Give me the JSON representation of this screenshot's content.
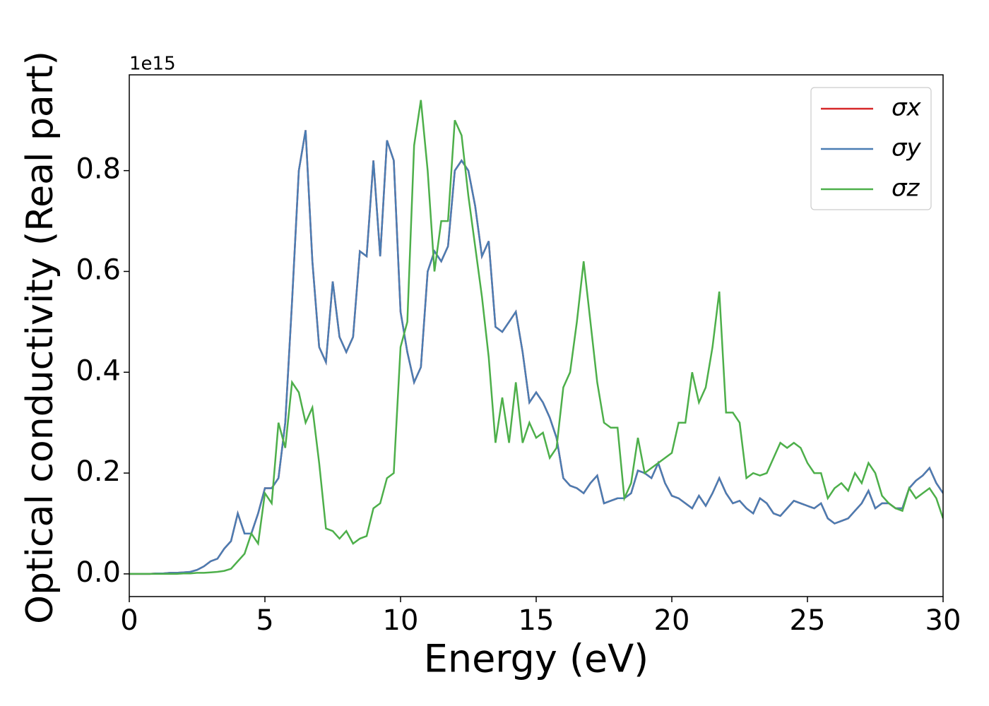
{
  "chart_data": {
    "type": "line",
    "x_label": "Energy (eV)",
    "y_label": "Optical conductivity (Real part)",
    "y_offset_label": "1e15",
    "x": [
      0,
      0.25,
      0.5,
      0.75,
      1,
      1.25,
      1.5,
      1.75,
      2,
      2.25,
      2.5,
      2.75,
      3,
      3.25,
      3.5,
      3.75,
      4,
      4.25,
      4.5,
      4.75,
      5,
      5.25,
      5.5,
      5.75,
      6,
      6.25,
      6.5,
      6.75,
      7,
      7.25,
      7.5,
      7.75,
      8,
      8.25,
      8.5,
      8.75,
      9,
      9.25,
      9.5,
      9.75,
      10,
      10.25,
      10.5,
      10.75,
      11,
      11.25,
      11.5,
      11.75,
      12,
      12.25,
      12.5,
      12.75,
      13,
      13.25,
      13.5,
      13.75,
      14,
      14.25,
      14.5,
      14.75,
      15,
      15.25,
      15.5,
      15.75,
      16,
      16.25,
      16.5,
      16.75,
      17,
      17.25,
      17.5,
      17.75,
      18,
      18.25,
      18.5,
      18.75,
      19,
      19.25,
      19.5,
      19.75,
      20,
      20.25,
      20.5,
      20.75,
      21,
      21.25,
      21.5,
      21.75,
      22,
      22.25,
      22.5,
      22.75,
      23,
      23.25,
      23.5,
      23.75,
      24,
      24.25,
      24.5,
      24.75,
      25,
      25.25,
      25.5,
      25.75,
      26,
      26.25,
      26.5,
      26.75,
      27,
      27.25,
      27.5,
      27.75,
      28,
      28.25,
      28.5,
      28.75,
      29,
      29.25,
      29.5,
      29.75,
      30
    ],
    "series": [
      {
        "name": "σx",
        "color": "#d62728",
        "values": [
          0,
          0,
          0,
          0,
          0.001,
          0.001,
          0.002,
          0.002,
          0.003,
          0.004,
          0.008,
          0.015,
          0.025,
          0.03,
          0.05,
          0.065,
          0.12,
          0.08,
          0.08,
          0.12,
          0.17,
          0.17,
          0.19,
          0.3,
          0.54,
          0.8,
          0.88,
          0.62,
          0.45,
          0.42,
          0.58,
          0.47,
          0.44,
          0.47,
          0.64,
          0.63,
          0.82,
          0.63,
          0.86,
          0.82,
          0.52,
          0.44,
          0.38,
          0.41,
          0.6,
          0.64,
          0.62,
          0.65,
          0.8,
          0.82,
          0.8,
          0.73,
          0.63,
          0.66,
          0.49,
          0.48,
          0.5,
          0.52,
          0.44,
          0.34,
          0.36,
          0.34,
          0.31,
          0.27,
          0.19,
          0.175,
          0.17,
          0.16,
          0.18,
          0.195,
          0.14,
          0.145,
          0.15,
          0.15,
          0.16,
          0.205,
          0.2,
          0.19,
          0.22,
          0.18,
          0.155,
          0.15,
          0.14,
          0.13,
          0.155,
          0.135,
          0.16,
          0.19,
          0.16,
          0.14,
          0.145,
          0.13,
          0.12,
          0.15,
          0.14,
          0.12,
          0.115,
          0.13,
          0.145,
          0.14,
          0.135,
          0.13,
          0.14,
          0.11,
          0.1,
          0.105,
          0.11,
          0.125,
          0.14,
          0.165,
          0.13,
          0.14,
          0.14,
          0.13,
          0.13,
          0.17,
          0.185,
          0.195,
          0.21,
          0.18,
          0.16
        ]
      },
      {
        "name": "σy",
        "color": "#4a7db3",
        "values": [
          0,
          0,
          0,
          0,
          0.001,
          0.001,
          0.002,
          0.002,
          0.003,
          0.004,
          0.008,
          0.015,
          0.025,
          0.03,
          0.05,
          0.065,
          0.12,
          0.08,
          0.08,
          0.12,
          0.17,
          0.17,
          0.19,
          0.3,
          0.54,
          0.8,
          0.88,
          0.62,
          0.45,
          0.42,
          0.58,
          0.47,
          0.44,
          0.47,
          0.64,
          0.63,
          0.82,
          0.63,
          0.86,
          0.82,
          0.52,
          0.44,
          0.38,
          0.41,
          0.6,
          0.64,
          0.62,
          0.65,
          0.8,
          0.82,
          0.8,
          0.73,
          0.63,
          0.66,
          0.49,
          0.48,
          0.5,
          0.52,
          0.44,
          0.34,
          0.36,
          0.34,
          0.31,
          0.27,
          0.19,
          0.175,
          0.17,
          0.16,
          0.18,
          0.195,
          0.14,
          0.145,
          0.15,
          0.15,
          0.16,
          0.205,
          0.2,
          0.19,
          0.22,
          0.18,
          0.155,
          0.15,
          0.14,
          0.13,
          0.155,
          0.135,
          0.16,
          0.19,
          0.16,
          0.14,
          0.145,
          0.13,
          0.12,
          0.15,
          0.14,
          0.12,
          0.115,
          0.13,
          0.145,
          0.14,
          0.135,
          0.13,
          0.14,
          0.11,
          0.1,
          0.105,
          0.11,
          0.125,
          0.14,
          0.165,
          0.13,
          0.14,
          0.14,
          0.13,
          0.13,
          0.17,
          0.185,
          0.195,
          0.21,
          0.18,
          0.16
        ]
      },
      {
        "name": "σz",
        "color": "#4daf4a",
        "values": [
          0,
          0,
          0,
          0,
          0,
          0,
          0,
          0,
          0.001,
          0.001,
          0.002,
          0.002,
          0.003,
          0.004,
          0.006,
          0.01,
          0.025,
          0.04,
          0.08,
          0.06,
          0.16,
          0.14,
          0.3,
          0.25,
          0.38,
          0.36,
          0.3,
          0.33,
          0.22,
          0.09,
          0.085,
          0.07,
          0.085,
          0.06,
          0.07,
          0.075,
          0.13,
          0.14,
          0.19,
          0.2,
          0.45,
          0.5,
          0.85,
          0.94,
          0.8,
          0.6,
          0.7,
          0.7,
          0.9,
          0.87,
          0.75,
          0.65,
          0.55,
          0.43,
          0.26,
          0.35,
          0.26,
          0.38,
          0.26,
          0.3,
          0.27,
          0.28,
          0.23,
          0.25,
          0.37,
          0.4,
          0.5,
          0.62,
          0.5,
          0.38,
          0.3,
          0.29,
          0.29,
          0.15,
          0.18,
          0.27,
          0.2,
          0.21,
          0.22,
          0.23,
          0.24,
          0.3,
          0.3,
          0.4,
          0.34,
          0.37,
          0.45,
          0.56,
          0.32,
          0.32,
          0.3,
          0.19,
          0.2,
          0.195,
          0.2,
          0.23,
          0.26,
          0.25,
          0.26,
          0.25,
          0.22,
          0.2,
          0.2,
          0.15,
          0.17,
          0.18,
          0.165,
          0.2,
          0.18,
          0.22,
          0.2,
          0.155,
          0.14,
          0.13,
          0.125,
          0.17,
          0.15,
          0.16,
          0.17,
          0.15,
          0.11
        ]
      }
    ],
    "xlim": [
      0,
      30
    ],
    "xticks": [
      0,
      5,
      10,
      15,
      20,
      25,
      30
    ],
    "ylim": [
      -0.045,
      0.99
    ],
    "yticks": [
      {
        "value": 0,
        "label": "0.0"
      },
      0.2,
      0.4,
      0.6,
      0.8
    ],
    "grid": false,
    "legend": "upper right"
  }
}
